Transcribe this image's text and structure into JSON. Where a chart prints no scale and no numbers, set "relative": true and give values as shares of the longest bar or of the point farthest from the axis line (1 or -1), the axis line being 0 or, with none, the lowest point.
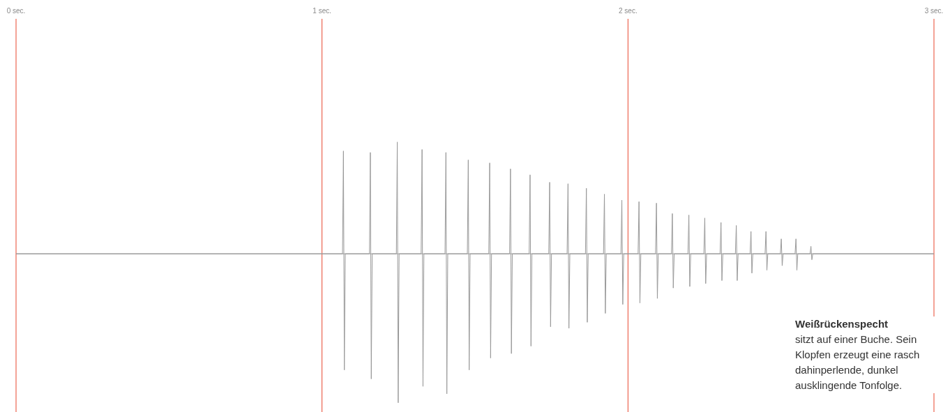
{
  "chart_data": {
    "type": "line",
    "relative": true,
    "color": "#9a9a9a",
    "grid": "x",
    "marker": "none",
    "line_style": "solid",
    "xlim": [
      0,
      3
    ],
    "ref_lines": [
      {
        "axis": "y",
        "value": 0,
        "color": "#9a9a9a"
      }
    ],
    "xticks": [
      {
        "value": 0,
        "label": "0 sec."
      },
      {
        "value": 1,
        "label": "1 sec."
      },
      {
        "value": 2,
        "label": "2 sec."
      },
      {
        "value": 3,
        "label": "3 sec."
      }
    ],
    "annotations": [
      "Weißrückenspecht",
      "sitzt auf einer Buche. Sein Klopfen erzeugt eine rasch dahinperlende, dunkel ausklingende Tonfolge."
    ],
    "x": [
      0,
      1.067,
      1.07,
      1.073,
      1.076,
      1.155,
      1.158,
      1.161,
      1.164,
      1.243,
      1.246,
      1.249,
      1.252,
      1.324,
      1.327,
      1.33,
      1.333,
      1.402,
      1.405,
      1.408,
      1.411,
      1.475,
      1.478,
      1.481,
      1.484,
      1.545,
      1.548,
      1.551,
      1.554,
      1.613,
      1.616,
      1.619,
      1.622,
      1.677,
      1.68,
      1.683,
      1.686,
      1.741,
      1.744,
      1.747,
      1.75,
      1.801,
      1.804,
      1.807,
      1.81,
      1.861,
      1.864,
      1.867,
      1.87,
      1.92,
      1.923,
      1.926,
      1.929,
      1.977,
      1.98,
      1.983,
      1.986,
      2.033,
      2.036,
      2.039,
      2.042,
      2.09,
      2.093,
      2.096,
      2.099,
      2.142,
      2.145,
      2.148,
      2.151,
      2.196,
      2.199,
      2.202,
      2.205,
      2.248,
      2.251,
      2.254,
      2.257,
      2.301,
      2.304,
      2.307,
      2.31,
      2.351,
      2.354,
      2.357,
      2.36,
      2.399,
      2.402,
      2.405,
      2.408,
      2.448,
      2.451,
      2.454,
      2.457,
      2.498,
      2.501,
      2.504,
      2.507,
      2.546,
      2.549,
      2.552,
      2.555,
      2.595,
      2.598,
      2.601,
      2.604,
      3
    ],
    "values": [
      0,
      0,
      0.69,
      -0.78,
      0,
      0,
      0.68,
      -0.84,
      0,
      0,
      0.75,
      -1,
      0,
      0,
      0.7,
      -0.89,
      0,
      0,
      0.68,
      -0.94,
      0,
      0,
      0.63,
      -0.78,
      0,
      0,
      0.61,
      -0.7,
      0,
      0,
      0.57,
      -0.67,
      0,
      0,
      0.53,
      -0.62,
      0,
      0,
      0.48,
      -0.49,
      0,
      0,
      0.47,
      -0.5,
      0,
      0,
      0.44,
      -0.46,
      0,
      0,
      0.4,
      -0.4,
      0,
      0,
      0.36,
      -0.34,
      0,
      0,
      0.35,
      -0.33,
      0,
      0,
      0.34,
      -0.3,
      0,
      0,
      0.27,
      -0.23,
      0,
      0,
      0.26,
      -0.22,
      0,
      0,
      0.24,
      -0.2,
      0,
      0,
      0.21,
      -0.18,
      0,
      0,
      0.19,
      -0.18,
      0,
      0,
      0.15,
      -0.13,
      0,
      0,
      0.15,
      -0.11,
      0,
      0,
      0.1,
      -0.08,
      0,
      0,
      0.1,
      -0.11,
      0,
      0,
      0.05,
      -0.04,
      0,
      0
    ]
  }
}
